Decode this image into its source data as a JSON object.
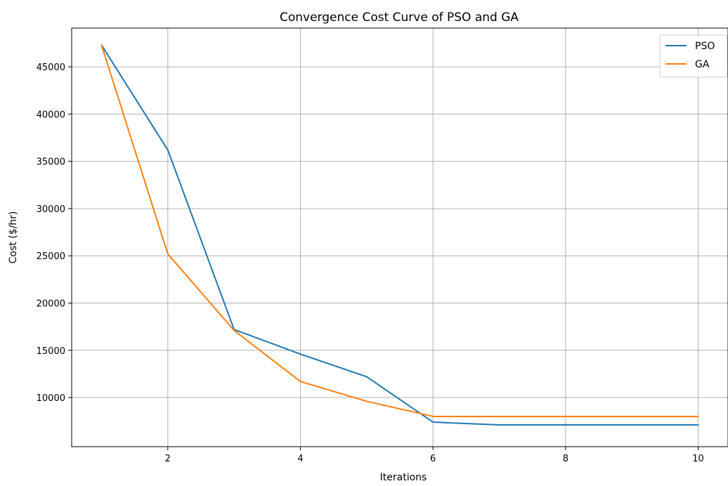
{
  "chart_data": {
    "type": "line",
    "title": "Convergence Cost Curve of PSO and GA",
    "xlabel": "Iterations",
    "ylabel": "Cost ($/hr)",
    "x": [
      1,
      2,
      3,
      4,
      5,
      6,
      7,
      8,
      9,
      10
    ],
    "xlim": [
      0.55,
      10.45
    ],
    "ylim": [
      4800,
      49100
    ],
    "xticks": [
      2,
      4,
      6,
      8,
      10
    ],
    "yticks": [
      10000,
      15000,
      20000,
      25000,
      30000,
      35000,
      40000,
      45000
    ],
    "grid": true,
    "legend_position": "top-right",
    "series": [
      {
        "name": "PSO",
        "color": "#1f77b4",
        "values": [
          47300,
          36200,
          17200,
          14600,
          12200,
          7400,
          7100,
          7100,
          7100,
          7100
        ]
      },
      {
        "name": "GA",
        "color": "#ff7f0e",
        "values": [
          47300,
          25200,
          17100,
          11700,
          9600,
          8000,
          8000,
          8000,
          8000,
          8000
        ]
      }
    ]
  }
}
